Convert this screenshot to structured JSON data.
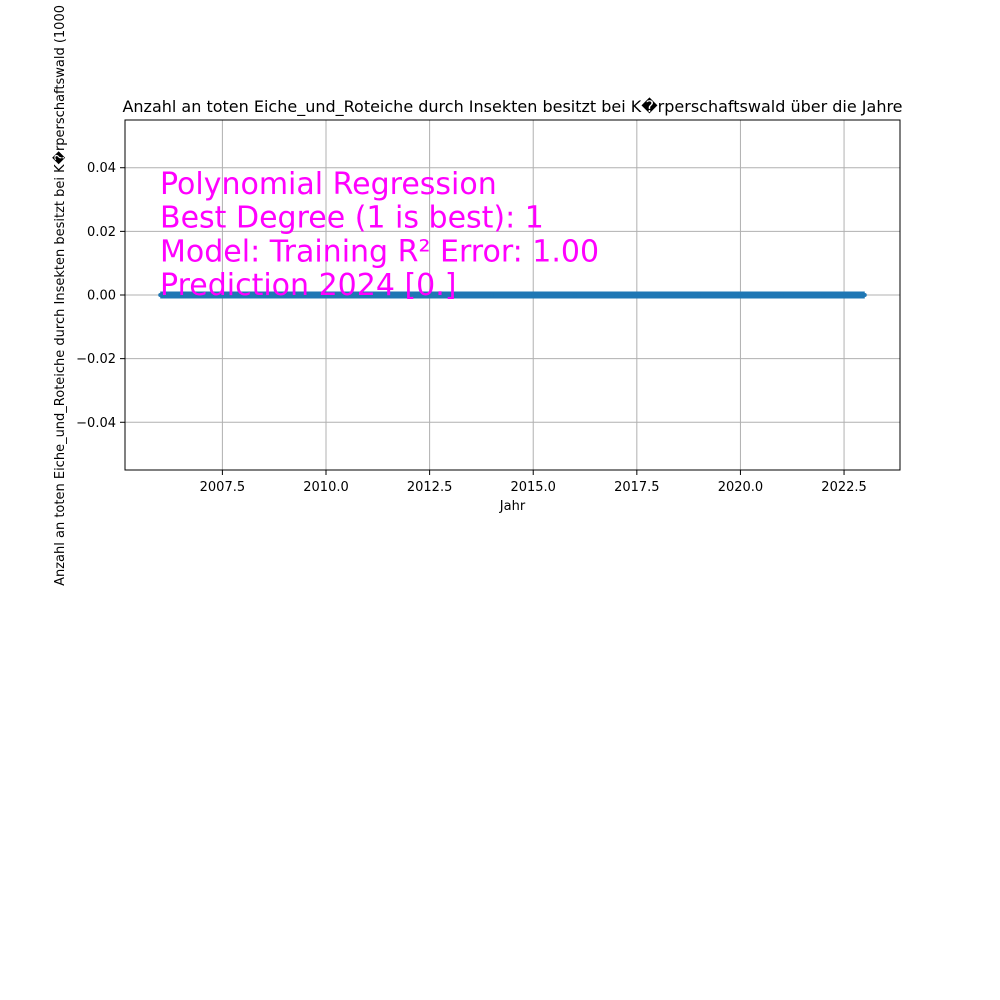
{
  "chart_data": {
    "type": "line",
    "title": "Anzahl an toten Eiche_und_Roteiche durch Insekten besitzt bei K�rperschaftswald über die Jahre",
    "xlabel": "Jahr",
    "ylabel": "Anzahl an toten Eiche_und_Roteiche durch Insekten besitzt bei K�rperschaftswald (1000",
    "xlim": [
      2005.15,
      2023.85
    ],
    "ylim": [
      -0.055,
      0.055
    ],
    "x_ticks": [
      2007.5,
      2010.0,
      2012.5,
      2015.0,
      2017.5,
      2020.0,
      2022.5
    ],
    "x_tick_labels": [
      "2007.5",
      "2010.0",
      "2012.5",
      "2015.0",
      "2017.5",
      "2020.0",
      "2022.5"
    ],
    "y_ticks": [
      -0.04,
      -0.02,
      0.0,
      0.02,
      0.04
    ],
    "y_tick_labels": [
      "−0.04",
      "−0.02",
      "0.00",
      "0.02",
      "0.04"
    ],
    "grid": true,
    "series": [
      {
        "color": "#1f77b4",
        "x": [
          2006,
          2007,
          2008,
          2009,
          2010,
          2011,
          2012,
          2013,
          2014,
          2015,
          2016,
          2017,
          2018,
          2019,
          2020,
          2021,
          2022,
          2023
        ],
        "y": [
          0,
          0,
          0,
          0,
          0,
          0,
          0,
          0,
          0,
          0,
          0,
          0,
          0,
          0,
          0,
          0,
          0,
          0
        ]
      }
    ],
    "annotation": {
      "color": "#ff00ff",
      "lines": [
        "Polynomial Regression",
        "Best Degree (1 is best): 1",
        "Model: Training R² Error: 1.00",
        "Prediction 2024 [0.]"
      ]
    }
  }
}
